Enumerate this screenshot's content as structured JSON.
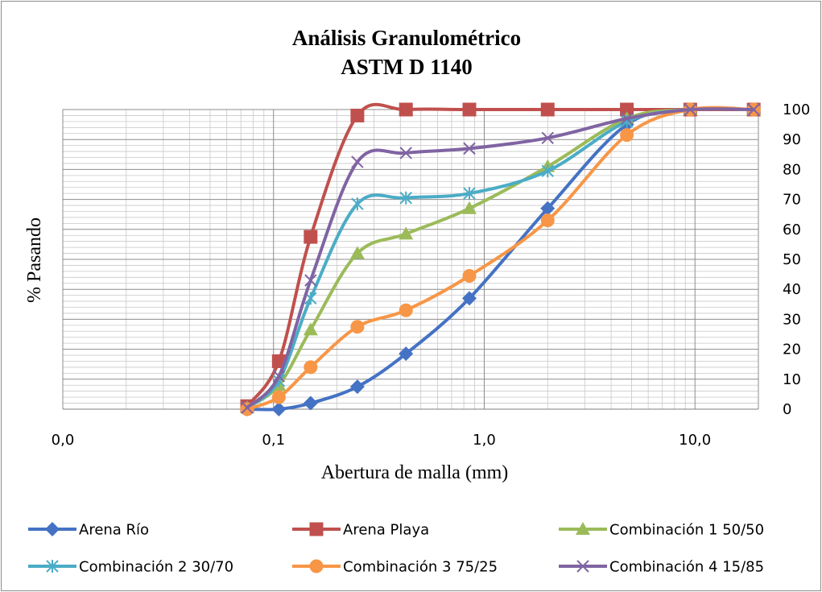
{
  "chart_data": {
    "type": "line",
    "title": [
      "Análisis Granulométrico",
      "ASTM D 1140"
    ],
    "xlabel": "Abertura de malla (mm)",
    "ylabel": "% Pasando",
    "x_scale": "log",
    "xlim": [
      0.01,
      20
    ],
    "ylim": [
      0,
      100
    ],
    "x_tick_labels": [
      {
        "value": 0.01,
        "label": "0,0"
      },
      {
        "value": 0.1,
        "label": "0,1"
      },
      {
        "value": 1,
        "label": "1,0"
      },
      {
        "value": 10,
        "label": "10,0"
      }
    ],
    "y_ticks": [
      0,
      10,
      20,
      30,
      40,
      50,
      60,
      70,
      80,
      90,
      100
    ],
    "y_axis_position": "right",
    "grid": true,
    "legend_position": "bottom",
    "x": [
      0.075,
      0.106,
      0.15,
      0.25,
      0.425,
      0.85,
      2.0,
      4.75,
      9.5,
      19.0
    ],
    "series": [
      {
        "name": "Arena Río",
        "color": "#4472c4",
        "marker": "diamond",
        "values": [
          0,
          0,
          2,
          7.5,
          18.5,
          37,
          67,
          95,
          100,
          100
        ]
      },
      {
        "name": "Arena Playa",
        "color": "#c0504d",
        "marker": "square",
        "values": [
          1,
          16,
          57.5,
          98,
          100,
          100,
          100,
          100,
          100,
          100
        ]
      },
      {
        "name": "Combinación 1 50/50",
        "color": "#9bbb59",
        "marker": "triangle",
        "values": [
          0.5,
          8,
          26.5,
          52,
          58.5,
          67,
          81,
          97,
          100,
          100
        ]
      },
      {
        "name": "Combinación 2 30/70",
        "color": "#4bacc6",
        "marker": "asterisk",
        "values": [
          0.5,
          9.5,
          37,
          68.5,
          70.5,
          72,
          79.5,
          96,
          100,
          100
        ]
      },
      {
        "name": "Combinación 3 75/25",
        "color": "#f79646",
        "marker": "circle",
        "values": [
          0,
          4,
          14,
          27.5,
          33,
          44.5,
          63,
          91.5,
          100,
          100
        ]
      },
      {
        "name": "Combinación 4 15/85",
        "color": "#8064a2",
        "marker": "x",
        "values": [
          0.5,
          11,
          43,
          82.5,
          85.5,
          87,
          90.5,
          97,
          100,
          100
        ]
      }
    ]
  }
}
